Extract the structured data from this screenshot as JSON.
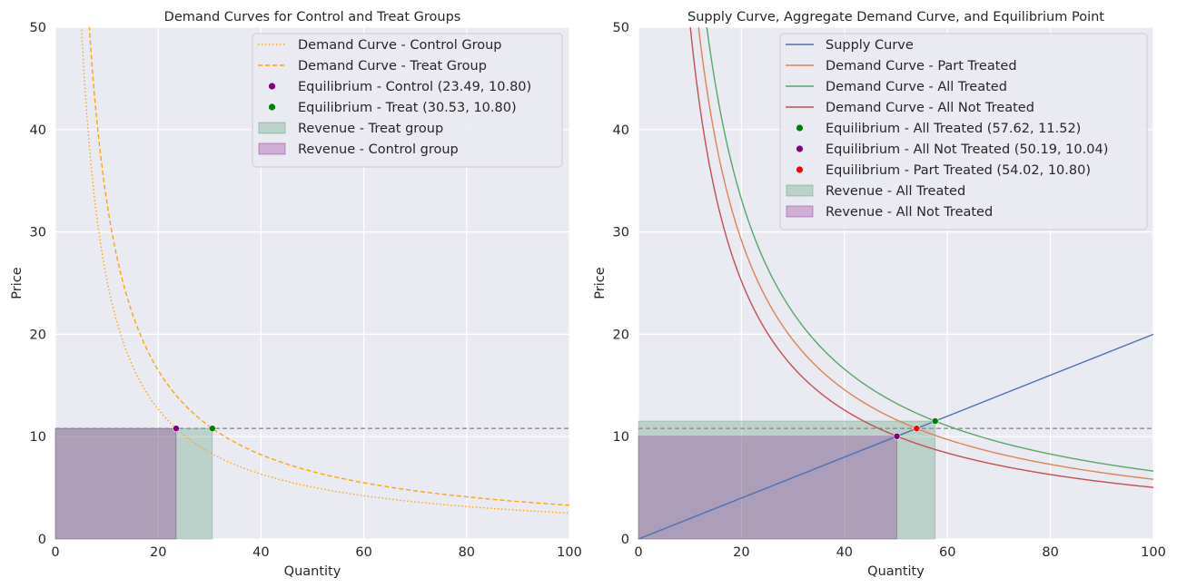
{
  "chart_data": [
    {
      "type": "line",
      "title": "Demand Curves for Control and Treat Groups",
      "xlabel": "Quantity",
      "ylabel": "Price",
      "xlim": [
        0,
        100
      ],
      "ylim": [
        0,
        50
      ],
      "xticks": [
        0,
        20,
        40,
        60,
        80,
        100
      ],
      "yticks": [
        0,
        10,
        20,
        30,
        40,
        50
      ],
      "grid": true,
      "legend_position": "top-right",
      "series": [
        {
          "name": "Demand Curve - Control Group",
          "kind": "line",
          "style": "dotted",
          "color": "#ffa500",
          "k": 253.7
        },
        {
          "name": "Demand Curve - Treat Group",
          "kind": "line",
          "style": "dashed",
          "color": "#ffa500",
          "k": 329.7
        }
      ],
      "points": [
        {
          "name": "Equilibrium - Control (23.49, 10.80)",
          "x": 23.49,
          "y": 10.8,
          "color": "#800080"
        },
        {
          "name": "Equilibrium - Treat (30.53, 10.80)",
          "x": 30.53,
          "y": 10.8,
          "color": "#008000"
        }
      ],
      "areas": [
        {
          "name": "Revenue - Treat group",
          "x": [
            0,
            30.53
          ],
          "y": 10.8,
          "color": "#2e8b57"
        },
        {
          "name": "Revenue - Control group",
          "x": [
            0,
            23.49
          ],
          "y": 10.8,
          "color": "#800080"
        }
      ],
      "hlines": [
        {
          "y": 10.8,
          "color": "#8c8c8c"
        }
      ]
    },
    {
      "type": "line",
      "title": "Supply Curve, Aggregate Demand Curve, and Equilibrium Point",
      "xlabel": "Quantity",
      "ylabel": "Price",
      "xlim": [
        0,
        100
      ],
      "ylim": [
        0,
        50
      ],
      "xticks": [
        0,
        20,
        40,
        60,
        80,
        100
      ],
      "yticks": [
        0,
        10,
        20,
        30,
        40,
        50
      ],
      "grid": true,
      "legend_position": "top-right",
      "series": [
        {
          "name": "Supply Curve",
          "kind": "linear",
          "style": "solid",
          "color": "#4c72b0",
          "slope": 0.2
        },
        {
          "name": "Demand Curve - Part Treated",
          "kind": "line",
          "style": "solid",
          "color": "#dd8452",
          "k": 583.4
        },
        {
          "name": "Demand Curve - All Treated",
          "kind": "line",
          "style": "solid",
          "color": "#55a868",
          "k": 663.8
        },
        {
          "name": "Demand Curve - All Not Treated",
          "kind": "line",
          "style": "solid",
          "color": "#c44e52",
          "k": 503.9
        }
      ],
      "points": [
        {
          "name": "Equilibrium - All Treated (57.62, 11.52)",
          "x": 57.62,
          "y": 11.52,
          "color": "#008000"
        },
        {
          "name": "Equilibrium - All Not Treated (50.19, 10.04)",
          "x": 50.19,
          "y": 10.04,
          "color": "#800080"
        },
        {
          "name": "Equilibrium - Part Treated (54.02, 10.80)",
          "x": 54.02,
          "y": 10.8,
          "color": "#ff0000"
        }
      ],
      "areas": [
        {
          "name": "Revenue - All Treated",
          "x": [
            0,
            57.62
          ],
          "y": 11.52,
          "color": "#2e8b57"
        },
        {
          "name": "Revenue - All Not Treated",
          "x": [
            0,
            50.19
          ],
          "y": 10.04,
          "color": "#800080"
        }
      ],
      "hlines": [
        {
          "y": 10.8,
          "color": "#8c8c8c"
        }
      ]
    }
  ]
}
